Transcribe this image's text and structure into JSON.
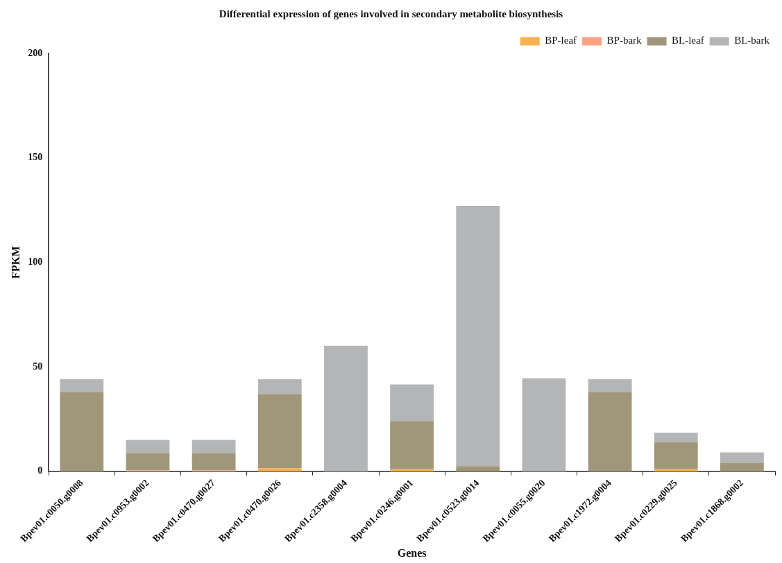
{
  "chart_data": {
    "type": "bar",
    "title": "Differential expression of genes involved in secondary metabolite biosynthesis",
    "xlabel": "Genes",
    "ylabel": "FPKM",
    "categories": [
      "Bpev01.c0050.g0008",
      "Bpev01.c0953.g0002",
      "Bpev01.c0470.g0027",
      "Bpev01.c0470.g0026",
      "Bpev01.c2358.g0004",
      "Bpev01.c0246.g0001",
      "Bpev01.c0523.g0014",
      "Bpev01.c0055.g0020",
      "Bpev01.c1972.g0004",
      "Bpev01.c0229.g0025",
      "Bpev01.c1868.g0002"
    ],
    "stacked": true,
    "series": [
      {
        "name": "BP-leaf",
        "color": "#fbb150",
        "values": [
          0,
          0,
          0,
          1.5,
          0,
          1,
          0,
          0,
          0,
          1,
          0
        ]
      },
      {
        "name": "BP-bark",
        "color": "#fca283",
        "values": [
          0,
          0.5,
          0.5,
          0,
          0,
          0,
          0,
          0,
          0,
          0,
          0
        ]
      },
      {
        "name": "BL-leaf",
        "color": "#a0977a",
        "values": [
          38,
          8,
          8,
          35.5,
          0,
          23,
          2.5,
          0,
          38,
          13,
          4
        ]
      },
      {
        "name": "BL-bark",
        "color": "#b4b5b7",
        "values": [
          6,
          6.5,
          6.5,
          7,
          60,
          17.5,
          124.5,
          44.5,
          6,
          4.5,
          5
        ]
      }
    ],
    "ylim": [
      0,
      200
    ],
    "yticks": [
      0,
      50,
      100,
      150,
      200
    ],
    "grid": false,
    "legend": "top right"
  }
}
